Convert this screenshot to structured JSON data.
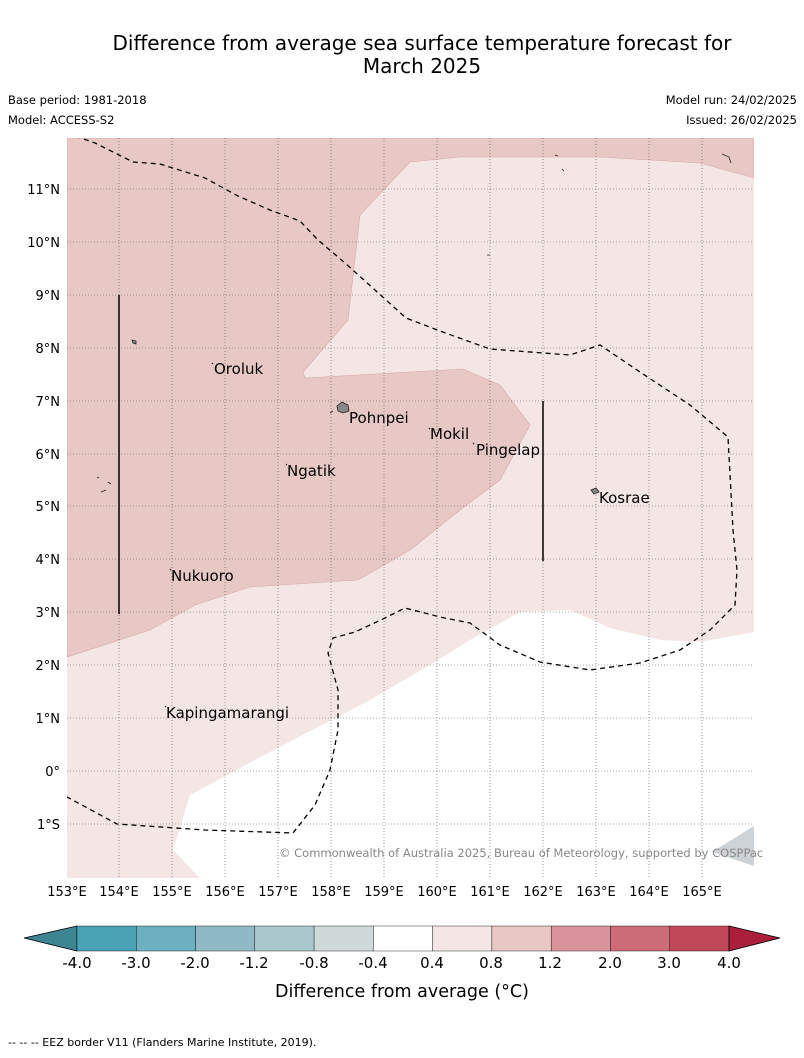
{
  "header": {
    "title_line1": "Difference from average sea surface temperature forecast for",
    "title_line2": "March 2025",
    "base_period": "Base period: 1981-2018",
    "model": "Model: ACCESS-S2",
    "model_run": "Model run: 24/02/2025",
    "issued": "Issued: 26/02/2025"
  },
  "map": {
    "lon_labels": [
      "153°E",
      "154°E",
      "155°E",
      "156°E",
      "157°E",
      "158°E",
      "159°E",
      "160°E",
      "161°E",
      "162°E",
      "163°E",
      "164°E",
      "165°E"
    ],
    "lat_labels": [
      "11°N",
      "10°N",
      "9°N",
      "8°N",
      "7°N",
      "6°N",
      "5°N",
      "4°N",
      "3°N",
      "2°N",
      "1°N",
      "0°",
      "1°S"
    ],
    "places": [
      {
        "name": "Oroluk"
      },
      {
        "name": "Pohnpei"
      },
      {
        "name": "Mokil"
      },
      {
        "name": "Pingelap"
      },
      {
        "name": "Ngatik"
      },
      {
        "name": "Kosrae"
      },
      {
        "name": "Nukuoro"
      },
      {
        "name": "Kapingamarangi"
      }
    ],
    "copyright": "© Commonwealth of Australia 2025, Bureau of Meteorology, supported by COSPPac"
  },
  "colorbar": {
    "tick_labels": [
      "-4.0",
      "-3.0",
      "-2.0",
      "-1.2",
      "-0.8",
      "-0.4",
      "0.4",
      "0.8",
      "1.2",
      "2.0",
      "3.0",
      "4.0"
    ],
    "colors": [
      "#4aa3b4",
      "#6db0bf",
      "#8fbac5",
      "#aac8cc",
      "#cfd9d9",
      "#ffffff",
      "#f4e6e5",
      "#e8c8c4",
      "#d8949a",
      "#cc6c76",
      "#c04858"
    ],
    "under_color": "#3d8591",
    "over_color": "#ab1f3c",
    "label": "Difference from average (°C)"
  },
  "legend_footer": "--  --  -- EEZ border V11 (Flanders Marine Institute, 2019)."
}
